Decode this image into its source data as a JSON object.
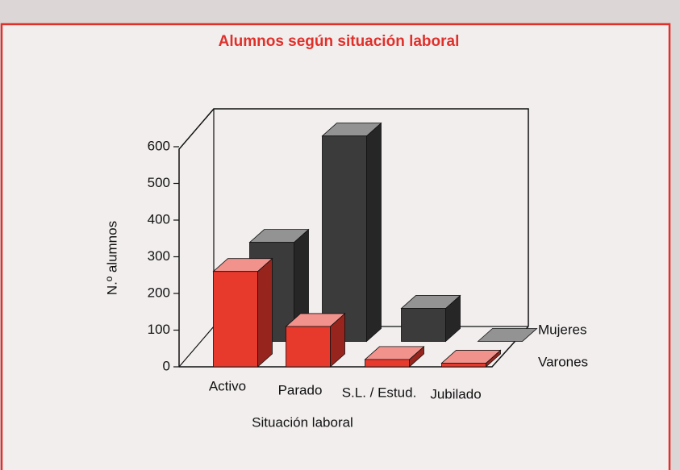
{
  "chart_data": {
    "type": "bar3d",
    "title": "Alumnos según situación laboral",
    "y_label": "N.º alumnos",
    "x_label": "Situación laboral",
    "categories": [
      "Activo",
      "Parado",
      "S.L. / Estud.",
      "Jubilado"
    ],
    "series": [
      {
        "name": "Mujeres",
        "color": "#3b3b3b",
        "values": [
          270,
          560,
          90,
          0
        ]
      },
      {
        "name": "Varones",
        "color": "#e8392d",
        "values": [
          260,
          110,
          20,
          10
        ]
      }
    ],
    "ylim": [
      0,
      600
    ],
    "yticks": [
      0,
      100,
      200,
      300,
      400,
      500,
      600
    ]
  }
}
